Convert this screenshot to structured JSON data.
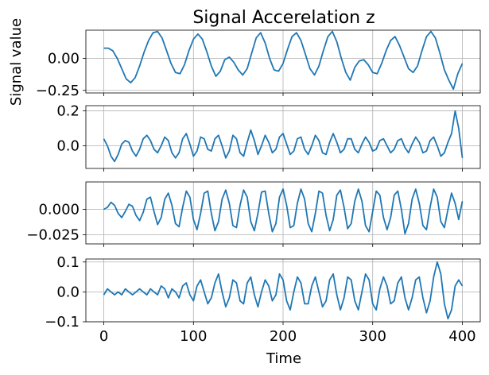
{
  "chart_data": {
    "type": "line",
    "title": "Signal Accerelation z",
    "xlabel": "Time",
    "ylabel": "Signal value",
    "line_color": "#1f77b4",
    "grid": true,
    "xlim": [
      -20,
      420
    ],
    "xticks": [
      0,
      100,
      200,
      300,
      400
    ],
    "xtick_labels": [
      "0",
      "100",
      "200",
      "300",
      "400"
    ],
    "panels": [
      {
        "ylim": [
          -0.27,
          0.22
        ],
        "yticks": [
          0.0,
          -0.25
        ],
        "ytick_labels": [
          "0.00",
          "−0.25"
        ],
        "series": {
          "x": [
            0,
            5,
            10,
            15,
            20,
            25,
            30,
            35,
            40,
            45,
            50,
            55,
            60,
            65,
            70,
            75,
            80,
            85,
            90,
            95,
            100,
            105,
            110,
            115,
            120,
            125,
            130,
            135,
            140,
            145,
            150,
            155,
            160,
            165,
            170,
            175,
            180,
            185,
            190,
            195,
            200,
            205,
            210,
            215,
            220,
            225,
            230,
            235,
            240,
            245,
            250,
            255,
            260,
            265,
            270,
            275,
            280,
            285,
            290,
            295,
            300,
            305,
            310,
            315,
            320,
            325,
            330,
            335,
            340,
            345,
            350,
            355,
            360,
            365,
            370,
            375,
            380,
            385,
            390,
            395,
            400
          ],
          "y": [
            0.08,
            0.08,
            0.06,
            0.0,
            -0.08,
            -0.16,
            -0.19,
            -0.15,
            -0.06,
            0.05,
            0.14,
            0.2,
            0.21,
            0.16,
            0.06,
            -0.04,
            -0.11,
            -0.12,
            -0.05,
            0.06,
            0.15,
            0.19,
            0.15,
            0.05,
            -0.06,
            -0.14,
            -0.1,
            -0.01,
            0.01,
            -0.03,
            -0.09,
            -0.13,
            -0.08,
            0.04,
            0.16,
            0.2,
            0.12,
            0.0,
            -0.09,
            -0.1,
            -0.04,
            0.07,
            0.17,
            0.2,
            0.14,
            0.03,
            -0.08,
            -0.13,
            -0.06,
            0.06,
            0.17,
            0.21,
            0.13,
            0.0,
            -0.11,
            -0.17,
            -0.07,
            -0.02,
            -0.01,
            -0.05,
            -0.11,
            -0.12,
            -0.04,
            0.06,
            0.14,
            0.17,
            0.1,
            0.01,
            -0.08,
            -0.11,
            -0.06,
            0.06,
            0.17,
            0.21,
            0.16,
            0.04,
            -0.09,
            -0.17,
            -0.24,
            -0.12,
            -0.04
          ]
        }
      },
      {
        "ylim": [
          -0.13,
          0.23
        ],
        "yticks": [
          0.2,
          0.0
        ],
        "ytick_labels": [
          "0.2",
          "0.0"
        ],
        "series": {
          "x": [
            0,
            4,
            8,
            12,
            16,
            20,
            24,
            28,
            32,
            36,
            40,
            44,
            48,
            52,
            56,
            60,
            64,
            68,
            72,
            76,
            80,
            84,
            88,
            92,
            96,
            100,
            104,
            108,
            112,
            116,
            120,
            124,
            128,
            132,
            136,
            140,
            144,
            148,
            152,
            156,
            160,
            164,
            168,
            172,
            176,
            180,
            184,
            188,
            192,
            196,
            200,
            204,
            208,
            212,
            216,
            220,
            224,
            228,
            232,
            236,
            240,
            244,
            248,
            252,
            256,
            260,
            264,
            268,
            272,
            276,
            280,
            284,
            288,
            292,
            296,
            300,
            304,
            308,
            312,
            316,
            320,
            324,
            328,
            332,
            336,
            340,
            344,
            348,
            352,
            356,
            360,
            364,
            368,
            372,
            376,
            380,
            384,
            388,
            392,
            396,
            400
          ],
          "y": [
            0.04,
            0.0,
            -0.06,
            -0.09,
            -0.05,
            0.01,
            0.03,
            0.02,
            -0.03,
            -0.06,
            -0.02,
            0.04,
            0.06,
            0.03,
            -0.02,
            -0.04,
            0.0,
            0.05,
            0.03,
            -0.04,
            -0.07,
            -0.04,
            0.04,
            0.07,
            0.01,
            -0.06,
            -0.03,
            0.05,
            0.04,
            -0.02,
            -0.03,
            0.04,
            0.06,
            0.0,
            -0.07,
            -0.03,
            0.06,
            0.04,
            -0.04,
            -0.06,
            0.02,
            0.09,
            0.03,
            -0.05,
            0.0,
            0.06,
            0.02,
            -0.04,
            -0.02,
            0.05,
            0.07,
            0.01,
            -0.05,
            -0.03,
            0.04,
            0.05,
            -0.02,
            -0.05,
            0.0,
            0.06,
            0.03,
            -0.04,
            -0.05,
            0.02,
            0.07,
            0.02,
            -0.04,
            -0.02,
            0.04,
            0.04,
            -0.02,
            -0.04,
            0.01,
            0.05,
            0.02,
            -0.03,
            -0.02,
            0.03,
            0.04,
            0.0,
            -0.04,
            -0.02,
            0.03,
            0.04,
            -0.01,
            -0.04,
            0.01,
            0.05,
            0.02,
            -0.04,
            -0.03,
            0.03,
            0.05,
            0.0,
            -0.06,
            -0.04,
            0.02,
            0.07,
            0.2,
            0.1,
            -0.07
          ]
        }
      },
      {
        "ylim": [
          -0.034,
          0.027
        ],
        "yticks": [
          0.0,
          -0.025
        ],
        "ytick_labels": [
          "0.000",
          "−0.025"
        ],
        "series": {
          "x": [
            0,
            4,
            8,
            12,
            16,
            20,
            24,
            28,
            32,
            36,
            40,
            44,
            48,
            52,
            56,
            60,
            64,
            68,
            72,
            76,
            80,
            84,
            88,
            92,
            96,
            100,
            104,
            108,
            112,
            116,
            120,
            124,
            128,
            132,
            136,
            140,
            144,
            148,
            152,
            156,
            160,
            164,
            168,
            172,
            176,
            180,
            184,
            188,
            192,
            196,
            200,
            204,
            208,
            212,
            216,
            220,
            224,
            228,
            232,
            236,
            240,
            244,
            248,
            252,
            256,
            260,
            264,
            268,
            272,
            276,
            280,
            284,
            288,
            292,
            296,
            300,
            304,
            308,
            312,
            316,
            320,
            324,
            328,
            332,
            336,
            340,
            344,
            348,
            352,
            356,
            360,
            364,
            368,
            372,
            376,
            380,
            384,
            388,
            392,
            396,
            400
          ],
          "y": [
            0.0,
            0.002,
            0.007,
            0.004,
            -0.004,
            -0.008,
            -0.002,
            0.005,
            0.003,
            -0.006,
            -0.011,
            -0.003,
            0.01,
            0.012,
            -0.002,
            -0.015,
            -0.008,
            0.01,
            0.016,
            0.004,
            -0.014,
            -0.017,
            0.002,
            0.018,
            0.012,
            -0.01,
            -0.02,
            -0.004,
            0.016,
            0.018,
            -0.004,
            -0.021,
            -0.012,
            0.01,
            0.019,
            0.006,
            -0.016,
            -0.018,
            0.004,
            0.019,
            0.012,
            -0.012,
            -0.021,
            -0.004,
            0.017,
            0.018,
            -0.004,
            -0.022,
            -0.014,
            0.012,
            0.02,
            0.004,
            -0.018,
            -0.016,
            0.006,
            0.02,
            0.01,
            -0.014,
            -0.022,
            -0.004,
            0.018,
            0.016,
            -0.006,
            -0.021,
            -0.01,
            0.014,
            0.019,
            0.002,
            -0.019,
            -0.014,
            0.008,
            0.02,
            0.008,
            -0.016,
            -0.022,
            -0.002,
            0.018,
            0.014,
            -0.008,
            -0.02,
            -0.008,
            0.014,
            0.018,
            0.0,
            -0.024,
            -0.014,
            0.01,
            0.02,
            0.006,
            -0.016,
            -0.02,
            0.002,
            0.02,
            0.012,
            -0.012,
            -0.018,
            0.0,
            0.016,
            0.006,
            -0.01,
            0.008
          ]
        }
      },
      {
        "ylim": [
          -0.1,
          0.11
        ],
        "yticks": [
          0.1,
          0.0,
          -0.1
        ],
        "ytick_labels": [
          "0.1",
          "0.0",
          "−0.1"
        ],
        "series": {
          "x": [
            0,
            4,
            8,
            12,
            16,
            20,
            24,
            28,
            32,
            36,
            40,
            44,
            48,
            52,
            56,
            60,
            64,
            68,
            72,
            76,
            80,
            84,
            88,
            92,
            96,
            100,
            104,
            108,
            112,
            116,
            120,
            124,
            128,
            132,
            136,
            140,
            144,
            148,
            152,
            156,
            160,
            164,
            168,
            172,
            176,
            180,
            184,
            188,
            192,
            196,
            200,
            204,
            208,
            212,
            216,
            220,
            224,
            228,
            232,
            236,
            240,
            244,
            248,
            252,
            256,
            260,
            264,
            268,
            272,
            276,
            280,
            284,
            288,
            292,
            296,
            300,
            304,
            308,
            312,
            316,
            320,
            324,
            328,
            332,
            336,
            340,
            344,
            348,
            352,
            356,
            360,
            364,
            368,
            372,
            376,
            380,
            384,
            388,
            392,
            396,
            400
          ],
          "y": [
            -0.01,
            0.01,
            0.0,
            -0.01,
            0.0,
            -0.01,
            0.01,
            0.0,
            -0.01,
            0.0,
            0.01,
            0.0,
            -0.01,
            0.01,
            0.0,
            -0.01,
            0.02,
            0.01,
            -0.02,
            0.01,
            0.0,
            -0.02,
            0.02,
            0.03,
            -0.01,
            -0.03,
            0.02,
            0.04,
            0.0,
            -0.04,
            -0.02,
            0.03,
            0.06,
            0.0,
            -0.05,
            -0.02,
            0.04,
            0.03,
            -0.03,
            -0.04,
            0.03,
            0.05,
            -0.01,
            -0.05,
            0.0,
            0.04,
            0.02,
            -0.03,
            -0.01,
            0.06,
            0.04,
            -0.03,
            -0.06,
            0.0,
            0.05,
            0.03,
            -0.04,
            -0.04,
            0.02,
            0.05,
            0.0,
            -0.05,
            -0.03,
            0.04,
            0.06,
            -0.01,
            -0.06,
            -0.02,
            0.05,
            0.04,
            -0.03,
            -0.06,
            0.0,
            0.06,
            0.04,
            -0.04,
            -0.06,
            0.01,
            0.05,
            0.02,
            -0.04,
            -0.03,
            0.03,
            0.05,
            -0.02,
            -0.06,
            -0.02,
            0.04,
            0.05,
            -0.02,
            -0.07,
            -0.03,
            0.05,
            0.1,
            0.06,
            -0.04,
            -0.09,
            -0.06,
            0.02,
            0.04,
            0.02
          ]
        }
      }
    ]
  }
}
